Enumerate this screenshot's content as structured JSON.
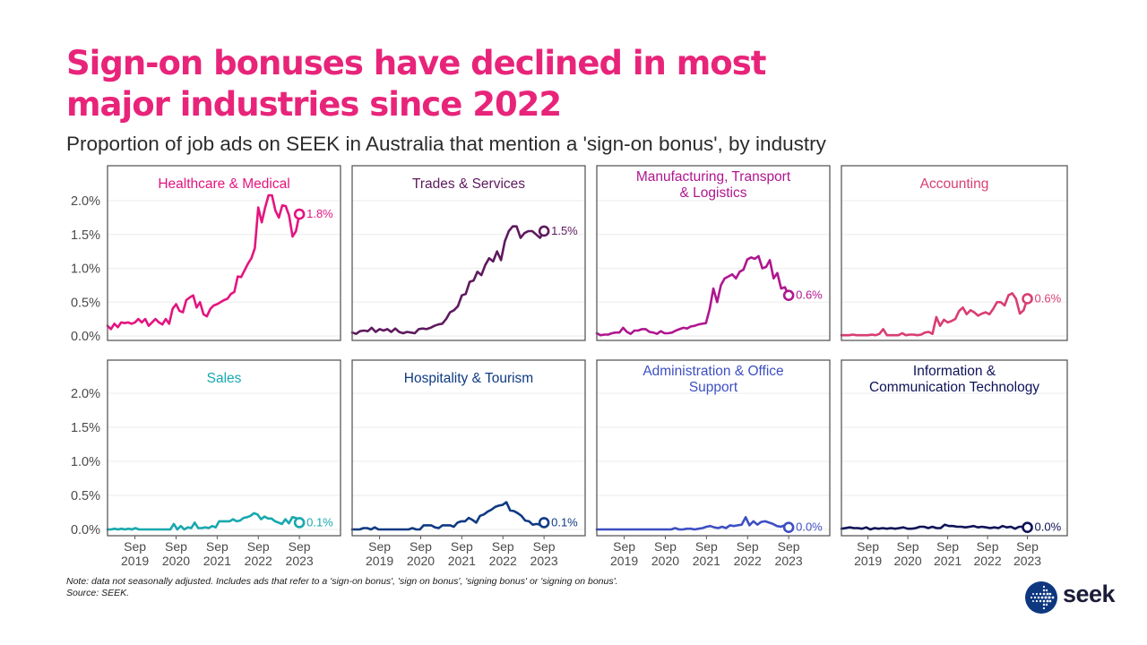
{
  "header": {
    "title_line1": "Sign-on bonuses have declined in most",
    "title_line2": "major industries since 2022",
    "subtitle": "Proportion of job ads on SEEK in Australia that mention a 'sign-on bonus', by industry"
  },
  "footer": {
    "note": "Note: data not seasonally adjusted. Includes ads that refer to a 'sign-on bonus', 'sign on bonus', 'signing bonus' or 'signing on bonus'.",
    "source": "Source: SEEK."
  },
  "logo": {
    "text": "seek",
    "circle_color": "#0d3880"
  },
  "chart_data": {
    "type": "line",
    "title": "Sign-on bonuses have declined in most major industries since 2022",
    "subtitle": "Proportion of job ads on SEEK in Australia that mention a 'sign-on bonus', by industry",
    "x_start": "2019-01",
    "x_frequency": "monthly",
    "x_ticks": [
      {
        "label_top": "Sep",
        "label_bottom": "2019",
        "month_index": 8
      },
      {
        "label_top": "Sep",
        "label_bottom": "2020",
        "month_index": 20
      },
      {
        "label_top": "Sep",
        "label_bottom": "2021",
        "month_index": 32
      },
      {
        "label_top": "Sep",
        "label_bottom": "2022",
        "month_index": 44
      },
      {
        "label_top": "Sep",
        "label_bottom": "2023",
        "month_index": 56
      }
    ],
    "x_range_months": [
      0,
      68
    ],
    "y_ticks": [
      "0.0%",
      "0.5%",
      "1.0%",
      "1.5%",
      "2.0%"
    ],
    "y_tick_values": [
      0,
      0.5,
      1.0,
      1.5,
      2.0
    ],
    "ylim": [
      -0.03,
      2.2
    ],
    "ylabel": "",
    "xlabel": "",
    "grid": "horizontal",
    "panels": [
      {
        "name": "Healthcare & Medical",
        "color": "#e4147f",
        "end_label": "1.8%",
        "values": [
          0.15,
          0.1,
          0.18,
          0.13,
          0.2,
          0.19,
          0.2,
          0.18,
          0.2,
          0.25,
          0.2,
          0.25,
          0.15,
          0.2,
          0.25,
          0.2,
          0.17,
          0.25,
          0.18,
          0.4,
          0.47,
          0.37,
          0.35,
          0.53,
          0.57,
          0.6,
          0.42,
          0.5,
          0.32,
          0.29,
          0.4,
          0.45,
          0.47,
          0.5,
          0.53,
          0.55,
          0.62,
          0.65,
          0.88,
          0.87,
          0.97,
          1.07,
          1.15,
          1.3,
          1.9,
          1.68,
          1.9,
          2.08,
          2.08,
          1.85,
          1.75,
          1.93,
          1.92,
          1.78,
          1.47,
          1.55,
          1.8
        ]
      },
      {
        "name": "Trades & Services",
        "color": "#5e1a5e",
        "end_label": "1.5%",
        "values": [
          0.05,
          0.03,
          0.07,
          0.08,
          0.07,
          0.12,
          0.06,
          0.1,
          0.08,
          0.1,
          0.06,
          0.11,
          0.06,
          0.04,
          0.06,
          0.05,
          0.04,
          0.1,
          0.11,
          0.1,
          0.12,
          0.15,
          0.17,
          0.18,
          0.25,
          0.35,
          0.38,
          0.44,
          0.6,
          0.62,
          0.8,
          0.82,
          0.95,
          0.9,
          1.05,
          1.15,
          1.1,
          1.25,
          1.12,
          1.4,
          1.55,
          1.62,
          1.62,
          1.45,
          1.52,
          1.55,
          1.55,
          1.5,
          1.45,
          1.55
        ]
      },
      {
        "name": "Manufacturing, Transport & Logistics",
        "color": "#b0168f",
        "end_label": "0.6%",
        "values": [
          0.04,
          0.01,
          0.02,
          0.02,
          0.04,
          0.05,
          0.05,
          0.12,
          0.06,
          0.03,
          0.08,
          0.08,
          0.1,
          0.1,
          0.06,
          0.05,
          0.03,
          0.07,
          0.04,
          0.04,
          0.05,
          0.08,
          0.1,
          0.12,
          0.11,
          0.14,
          0.15,
          0.17,
          0.18,
          0.19,
          0.4,
          0.7,
          0.5,
          0.75,
          0.85,
          0.88,
          0.91,
          0.85,
          0.95,
          0.98,
          1.13,
          1.16,
          1.14,
          1.18,
          1.0,
          1.02,
          1.12,
          0.85,
          0.93,
          0.7,
          0.72,
          0.6
        ]
      },
      {
        "name": "Accounting",
        "color": "#d93d73",
        "end_label": "0.6%",
        "values": [
          0.01,
          0.01,
          0.01,
          0.02,
          0.01,
          0.01,
          0.01,
          0.01,
          0.02,
          0.01,
          0.03,
          0.1,
          0.01,
          0.01,
          0.01,
          0.01,
          0.04,
          0.01,
          0.02,
          0.02,
          0.01,
          0.02,
          0.05,
          0.06,
          0.03,
          0.28,
          0.15,
          0.24,
          0.2,
          0.22,
          0.25,
          0.37,
          0.42,
          0.32,
          0.38,
          0.35,
          0.3,
          0.33,
          0.35,
          0.32,
          0.4,
          0.5,
          0.5,
          0.45,
          0.6,
          0.63,
          0.55,
          0.33,
          0.38,
          0.55
        ]
      },
      {
        "name": "Sales",
        "color": "#17a8ae",
        "end_label": "0.1%",
        "values": [
          0.0,
          0.0,
          0.01,
          0.0,
          0.01,
          0.0,
          0.01,
          0.0,
          0.02,
          0.0,
          0.0,
          0.0,
          0.0,
          0.0,
          0.0,
          0.0,
          0.0,
          0.0,
          0.0,
          0.08,
          0.0,
          0.05,
          0.0,
          0.03,
          0.02,
          0.1,
          0.02,
          0.02,
          0.03,
          0.02,
          0.05,
          0.03,
          0.12,
          0.12,
          0.12,
          0.12,
          0.15,
          0.12,
          0.13,
          0.17,
          0.18,
          0.2,
          0.24,
          0.22,
          0.15,
          0.19,
          0.16,
          0.16,
          0.12,
          0.1,
          0.08,
          0.15,
          0.09,
          0.18,
          0.17,
          0.1
        ]
      },
      {
        "name": "Hospitality & Tourism",
        "color": "#0f3a82",
        "end_label": "0.1%",
        "values": [
          0.0,
          0.0,
          0.0,
          0.02,
          0.02,
          0.0,
          0.03,
          0.0,
          0.0,
          0.0,
          0.0,
          0.0,
          0.0,
          0.0,
          0.0,
          0.0,
          0.02,
          0.0,
          0.0,
          0.06,
          0.06,
          0.06,
          0.03,
          0.02,
          0.06,
          0.06,
          0.06,
          0.04,
          0.1,
          0.12,
          0.12,
          0.17,
          0.14,
          0.1,
          0.2,
          0.22,
          0.26,
          0.29,
          0.33,
          0.35,
          0.36,
          0.4,
          0.28,
          0.27,
          0.24,
          0.2,
          0.13,
          0.12,
          0.07,
          0.08,
          0.07,
          0.1
        ]
      },
      {
        "name": "Administration & Office Support",
        "color": "#3d4fc2",
        "end_label": "0.0%",
        "values": [
          0.0,
          0.0,
          0.0,
          0.0,
          0.0,
          0.0,
          0.0,
          0.0,
          0.0,
          0.0,
          0.0,
          0.0,
          0.0,
          0.0,
          0.0,
          0.0,
          0.0,
          0.0,
          0.0,
          0.0,
          0.02,
          0.0,
          0.0,
          0.01,
          0.01,
          0.0,
          0.01,
          0.02,
          0.04,
          0.05,
          0.03,
          0.02,
          0.04,
          0.02,
          0.06,
          0.05,
          0.06,
          0.07,
          0.18,
          0.06,
          0.12,
          0.07,
          0.11,
          0.12,
          0.1,
          0.08,
          0.05,
          0.04,
          0.06,
          0.03
        ]
      },
      {
        "name": "Information & Communication Technology",
        "color": "#0e1257",
        "end_label": "0.0%",
        "values": [
          0.01,
          0.02,
          0.03,
          0.02,
          0.02,
          0.01,
          0.03,
          0.0,
          0.02,
          0.01,
          0.02,
          0.01,
          0.02,
          0.01,
          0.02,
          0.03,
          0.01,
          0.01,
          0.02,
          0.04,
          0.04,
          0.02,
          0.04,
          0.02,
          0.02,
          0.07,
          0.05,
          0.05,
          0.04,
          0.04,
          0.03,
          0.04,
          0.05,
          0.03,
          0.04,
          0.03,
          0.02,
          0.03,
          0.02,
          0.05,
          0.03,
          0.04,
          0.01,
          0.04,
          0.04,
          0.03
        ]
      }
    ]
  }
}
